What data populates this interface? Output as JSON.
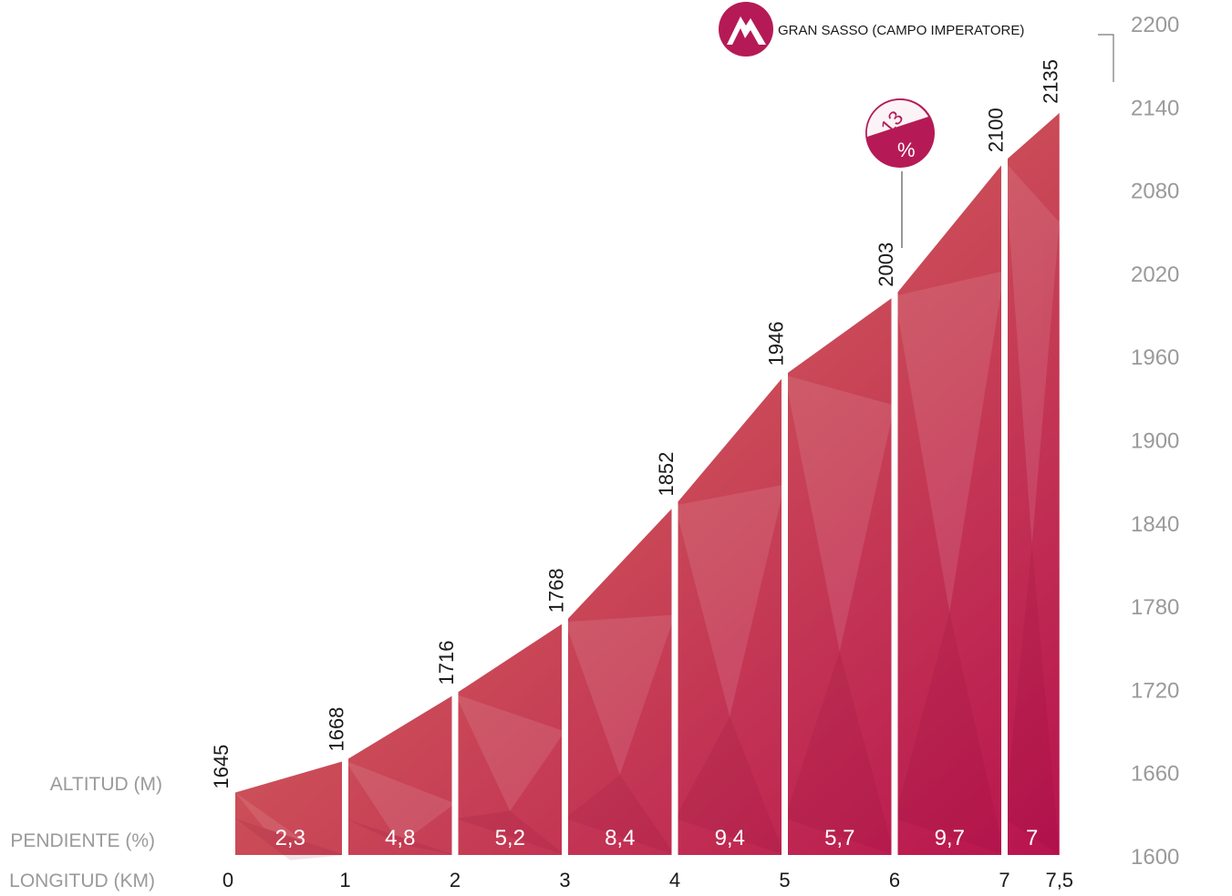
{
  "chart_data": {
    "type": "area",
    "title": "",
    "summit": "GRAN SASSO (CAMPO IMPERATORE)",
    "row_labels": {
      "altitude": "ALTITUD (M)",
      "slope": "PENDIENTE (%)",
      "distance": "LONGITUD (KM)"
    },
    "x": [
      0,
      1,
      2,
      3,
      4,
      5,
      6,
      7,
      7.5
    ],
    "x_labels": [
      "0",
      "1",
      "2",
      "3",
      "4",
      "5",
      "6",
      "7",
      "7,5"
    ],
    "altitude": [
      1645,
      1668,
      1716,
      1768,
      1852,
      1946,
      2003,
      2100,
      2135
    ],
    "altitude_labels": [
      "1645",
      "1668",
      "1716",
      "1768",
      "1852",
      "1946",
      "2003",
      "2100",
      "2135"
    ],
    "slopes": [
      "2,3",
      "4,8",
      "5,2",
      "8,4",
      "9,4",
      "5,7",
      "9,7",
      "7"
    ],
    "max_slope": {
      "value": "13",
      "unit": "%",
      "at_km": 6.15
    },
    "ylim": [
      1600,
      2200
    ],
    "y_ticks": [
      "1600",
      "1660",
      "1720",
      "1780",
      "1840",
      "1900",
      "1960",
      "2020",
      "2080",
      "2140",
      "2200"
    ],
    "colors": {
      "profile_light": "#db6a5a",
      "profile_dark": "#b81652",
      "badge": "#b51a56",
      "axis_text": "#9a9a9a"
    }
  }
}
